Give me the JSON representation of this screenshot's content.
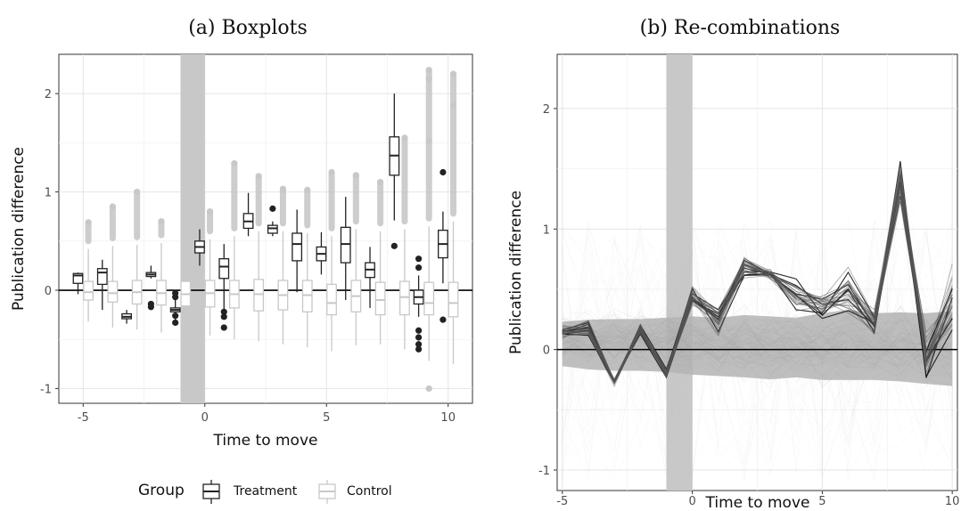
{
  "chart_data": [
    {
      "type": "boxplot",
      "title": "(a) Boxplots",
      "xlabel": "Time to move",
      "ylabel": "Publication difference",
      "xlim": [
        -6,
        11
      ],
      "ylim": [
        -1.15,
        2.4
      ],
      "xticks": [
        "-5",
        "0",
        "5",
        "10"
      ],
      "yticks": [
        "-1",
        "0",
        "1",
        "2"
      ],
      "grid": true,
      "shaded_band": [
        -1,
        0
      ],
      "reference_line_y": 0,
      "legend": {
        "position": "bottom",
        "title": "Group",
        "entries": [
          {
            "label": "Treatment",
            "color": "#222222"
          },
          {
            "label": "Control",
            "color": "#c8c8c8"
          }
        ]
      },
      "series": [
        {
          "name": "Treatment",
          "color": "#222222",
          "boxes": [
            {
              "x": -5,
              "lw": -0.04,
              "q1": 0.07,
              "med": 0.15,
              "q3": 0.17,
              "uw": 0.18,
              "outliers": []
            },
            {
              "x": -4,
              "lw": -0.2,
              "q1": 0.06,
              "med": 0.18,
              "q3": 0.22,
              "uw": 0.31,
              "outliers": []
            },
            {
              "x": -3,
              "lw": -0.34,
              "q1": -0.29,
              "med": -0.27,
              "q3": -0.24,
              "uw": -0.2,
              "outliers": []
            },
            {
              "x": -2,
              "lw": 0.12,
              "q1": 0.14,
              "med": 0.16,
              "q3": 0.18,
              "uw": 0.25,
              "outliers": [
                -0.14,
                -0.17
              ]
            },
            {
              "x": -1,
              "lw": -0.3,
              "q1": -0.22,
              "med": -0.2,
              "q3": -0.18,
              "uw": -0.1,
              "outliers": [
                -0.03,
                -0.07,
                -0.26,
                -0.33
              ]
            },
            {
              "x": 0,
              "lw": 0.25,
              "q1": 0.38,
              "med": 0.44,
              "q3": 0.5,
              "uw": 0.62,
              "outliers": []
            },
            {
              "x": 1,
              "lw": -0.2,
              "q1": 0.12,
              "med": 0.24,
              "q3": 0.32,
              "uw": 0.47,
              "outliers": [
                -0.22,
                -0.27,
                -0.38
              ]
            },
            {
              "x": 2,
              "lw": 0.55,
              "q1": 0.63,
              "med": 0.7,
              "q3": 0.78,
              "uw": 0.99,
              "outliers": []
            },
            {
              "x": 3,
              "lw": 0.55,
              "q1": 0.58,
              "med": 0.63,
              "q3": 0.66,
              "uw": 0.7,
              "outliers": [
                0.83
              ]
            },
            {
              "x": 4,
              "lw": -0.02,
              "q1": 0.3,
              "med": 0.47,
              "q3": 0.58,
              "uw": 0.82,
              "outliers": []
            },
            {
              "x": 5,
              "lw": 0.16,
              "q1": 0.3,
              "med": 0.37,
              "q3": 0.44,
              "uw": 0.59,
              "outliers": []
            },
            {
              "x": 6,
              "lw": -0.1,
              "q1": 0.28,
              "med": 0.47,
              "q3": 0.64,
              "uw": 0.95,
              "outliers": []
            },
            {
              "x": 7,
              "lw": -0.18,
              "q1": 0.13,
              "med": 0.21,
              "q3": 0.28,
              "uw": 0.44,
              "outliers": []
            },
            {
              "x": 8,
              "lw": 0.71,
              "q1": 1.17,
              "med": 1.37,
              "q3": 1.56,
              "uw": 2.0,
              "outliers": [
                0.45
              ]
            },
            {
              "x": 9,
              "lw": -0.27,
              "q1": -0.14,
              "med": -0.07,
              "q3": 0.0,
              "uw": 0.15,
              "outliers": [
                0.32,
                0.23,
                -0.41,
                -0.48,
                -0.55,
                -0.6
              ]
            },
            {
              "x": 10,
              "lw": 0.07,
              "q1": 0.33,
              "med": 0.47,
              "q3": 0.61,
              "uw": 0.8,
              "outliers": [
                1.2,
                -0.3
              ]
            }
          ]
        },
        {
          "name": "Control",
          "color": "#c8c8c8",
          "boxes": [
            {
              "x": -5,
              "lw": -0.32,
              "q1": -0.1,
              "med": -0.02,
              "q3": 0.09,
              "uw": 0.42,
              "outliers": [
                0.69
              ]
            },
            {
              "x": -4,
              "lw": -0.38,
              "q1": -0.12,
              "med": -0.03,
              "q3": 0.09,
              "uw": 0.45,
              "outliers": [
                0.85
              ]
            },
            {
              "x": -3,
              "lw": -0.4,
              "q1": -0.14,
              "med": -0.02,
              "q3": 0.1,
              "uw": 0.46,
              "outliers": [
                1.0
              ]
            },
            {
              "x": -2,
              "lw": -0.43,
              "q1": -0.15,
              "med": -0.03,
              "q3": 0.1,
              "uw": 0.48,
              "outliers": [
                0.7
              ]
            },
            {
              "x": -1,
              "lw": -0.54,
              "q1": -0.16,
              "med": -0.04,
              "q3": 0.09,
              "uw": 0.5,
              "outliers": [
                0.96
              ]
            },
            {
              "x": 0,
              "lw": -0.46,
              "q1": -0.17,
              "med": -0.03,
              "q3": 0.1,
              "uw": 0.52,
              "outliers": [
                0.8
              ]
            },
            {
              "x": 1,
              "lw": -0.5,
              "q1": -0.18,
              "med": -0.04,
              "q3": 0.1,
              "uw": 0.55,
              "outliers": [
                1.29
              ]
            },
            {
              "x": 2,
              "lw": -0.52,
              "q1": -0.21,
              "med": -0.04,
              "q3": 0.11,
              "uw": 0.6,
              "outliers": [
                1.16
              ]
            },
            {
              "x": 3,
              "lw": -0.55,
              "q1": -0.2,
              "med": -0.05,
              "q3": 0.1,
              "uw": 0.6,
              "outliers": [
                1.03
              ]
            },
            {
              "x": 4,
              "lw": -0.58,
              "q1": -0.22,
              "med": -0.05,
              "q3": 0.1,
              "uw": 0.58,
              "outliers": [
                1.02
              ]
            },
            {
              "x": 5,
              "lw": -0.62,
              "q1": -0.25,
              "med": -0.13,
              "q3": 0.06,
              "uw": 0.55,
              "outliers": [
                1.2
              ]
            },
            {
              "x": 6,
              "lw": -0.56,
              "q1": -0.22,
              "med": -0.06,
              "q3": 0.1,
              "uw": 0.62,
              "outliers": [
                1.17
              ]
            },
            {
              "x": 7,
              "lw": -0.55,
              "q1": -0.25,
              "med": -0.1,
              "q3": 0.08,
              "uw": 0.6,
              "outliers": [
                1.1
              ]
            },
            {
              "x": 8,
              "lw": -0.6,
              "q1": -0.25,
              "med": -0.07,
              "q3": 0.09,
              "uw": 0.62,
              "outliers": [
                1.55
              ]
            },
            {
              "x": 9,
              "lw": -0.72,
              "q1": -0.25,
              "med": -0.13,
              "q3": 0.08,
              "uw": 0.65,
              "outliers": [
                2.24,
                2.15,
                1.52,
                -1.0
              ]
            },
            {
              "x": 10,
              "lw": -0.75,
              "q1": -0.27,
              "med": -0.13,
              "q3": 0.08,
              "uw": 0.7,
              "outliers": [
                2.2,
                1.88
              ]
            }
          ]
        }
      ]
    },
    {
      "type": "line",
      "title": "(b) Re-combinations",
      "xlabel": "Time to move",
      "ylabel": "Publication difference",
      "xlim": [
        -5.2,
        10.2
      ],
      "ylim": [
        -1.17,
        2.45
      ],
      "xticks": [
        "-5",
        "0",
        "5",
        "10"
      ],
      "yticks": [
        "-1",
        "0",
        "1",
        "2"
      ],
      "grid": true,
      "shaded_band": [
        -1,
        0
      ],
      "reference_line_y": 0,
      "x": [
        -5,
        -4,
        -3,
        -2,
        -1,
        0,
        1,
        2,
        3,
        4,
        5,
        6,
        7,
        8,
        9,
        10
      ],
      "control_band": {
        "color": "#b4b4b4",
        "lower": [
          -0.25,
          -0.3,
          -0.32,
          -0.32,
          -0.34,
          -0.38,
          -0.4,
          -0.42,
          -0.45,
          -0.42,
          -0.46,
          -0.46,
          -0.46,
          -0.48,
          -0.52,
          -0.55
        ],
        "upper": [
          0.42,
          0.45,
          0.46,
          0.46,
          0.48,
          0.5,
          0.48,
          0.52,
          0.5,
          0.48,
          0.55,
          0.6,
          0.55,
          0.56,
          0.55,
          0.58
        ]
      },
      "treatment_mean": [
        0.15,
        0.18,
        -0.27,
        0.17,
        -0.2,
        0.44,
        0.24,
        0.68,
        0.63,
        0.46,
        0.37,
        0.46,
        0.22,
        1.4,
        -0.07,
        0.45
      ],
      "treatment_spread": [
        0.05,
        0.06,
        0.03,
        0.04,
        0.04,
        0.08,
        0.1,
        0.1,
        0.05,
        0.14,
        0.1,
        0.18,
        0.1,
        0.2,
        0.15,
        0.3
      ]
    }
  ]
}
